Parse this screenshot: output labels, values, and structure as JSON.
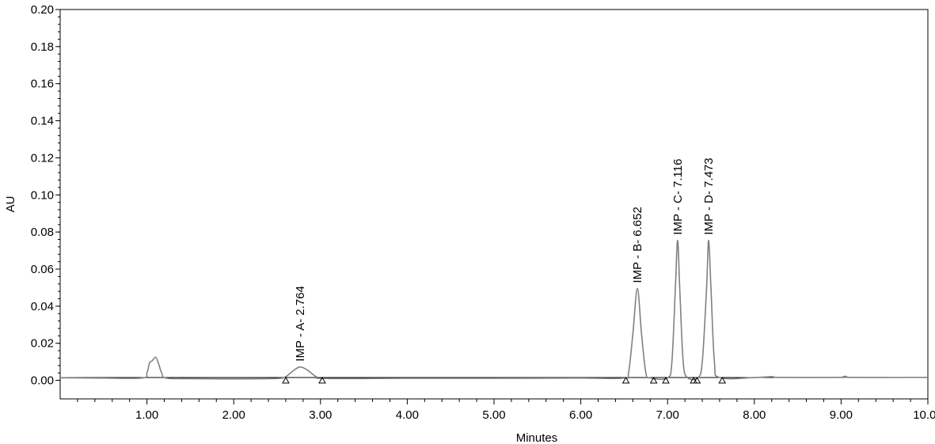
{
  "chart_data": {
    "type": "line",
    "title": "",
    "xlabel": "Minutes",
    "ylabel": "AU",
    "xlim": [
      0.0,
      10.0
    ],
    "ylim": [
      -0.01,
      0.2
    ],
    "x_ticks": [
      1.0,
      2.0,
      3.0,
      4.0,
      5.0,
      6.0,
      7.0,
      8.0,
      9.0,
      10.0
    ],
    "x_tick_labels": [
      "1.00",
      "2.00",
      "3.00",
      "4.00",
      "5.00",
      "6.00",
      "7.00",
      "8.00",
      "9.00",
      "10.00"
    ],
    "y_ticks": [
      0.0,
      0.02,
      0.04,
      0.06,
      0.08,
      0.1,
      0.12,
      0.14,
      0.16,
      0.18,
      0.2
    ],
    "y_tick_labels": [
      "0.00",
      "0.02",
      "0.04",
      "0.06",
      "0.08",
      "0.10",
      "0.12",
      "0.14",
      "0.16",
      "0.18",
      "0.20"
    ],
    "grid": false,
    "baseline": 0.0015,
    "series": [
      {
        "color": "#808080",
        "points": [
          [
            0.0,
            0.0014
          ],
          [
            0.5,
            0.0012
          ],
          [
            0.95,
            0.0013
          ],
          [
            1.0,
            0.004
          ],
          [
            1.03,
            0.0095
          ],
          [
            1.06,
            0.0105
          ],
          [
            1.1,
            0.0125
          ],
          [
            1.13,
            0.0095
          ],
          [
            1.17,
            0.004
          ],
          [
            1.22,
            0.0012
          ],
          [
            1.5,
            0.0009
          ],
          [
            2.0,
            0.0008
          ],
          [
            2.5,
            0.001
          ],
          [
            2.6,
            0.002
          ],
          [
            2.68,
            0.005
          ],
          [
            2.764,
            0.0072
          ],
          [
            2.85,
            0.0055
          ],
          [
            2.95,
            0.002
          ],
          [
            3.05,
            0.001
          ],
          [
            4.0,
            0.0011
          ],
          [
            5.0,
            0.0011
          ],
          [
            6.0,
            0.0012
          ],
          [
            6.5,
            0.0012
          ],
          [
            6.55,
            0.004
          ],
          [
            6.6,
            0.025
          ],
          [
            6.652,
            0.0495
          ],
          [
            6.7,
            0.025
          ],
          [
            6.75,
            0.004
          ],
          [
            6.8,
            0.0013
          ],
          [
            7.0,
            0.0013
          ],
          [
            7.05,
            0.01
          ],
          [
            7.09,
            0.05
          ],
          [
            7.116,
            0.0755
          ],
          [
            7.14,
            0.05
          ],
          [
            7.18,
            0.01
          ],
          [
            7.23,
            0.0015
          ],
          [
            7.35,
            0.0014
          ],
          [
            7.4,
            0.01
          ],
          [
            7.45,
            0.05
          ],
          [
            7.473,
            0.0755
          ],
          [
            7.5,
            0.05
          ],
          [
            7.54,
            0.01
          ],
          [
            7.6,
            0.0015
          ],
          [
            8.0,
            0.0015
          ],
          [
            8.2,
            0.002
          ],
          [
            8.3,
            0.0016
          ],
          [
            9.0,
            0.0016
          ],
          [
            9.05,
            0.0022
          ],
          [
            9.1,
            0.0016
          ],
          [
            10.0,
            0.0016
          ]
        ]
      }
    ],
    "peaks": [
      {
        "label": "IMP - A- 2.764",
        "x": 2.764,
        "y": 0.0072
      },
      {
        "label": "IMP - B- 6.652",
        "x": 6.652,
        "y": 0.0495
      },
      {
        "label": "IMP - C- 7.116",
        "x": 7.116,
        "y": 0.0755
      },
      {
        "label": "IMP - D- 7.473",
        "x": 7.473,
        "y": 0.0755
      }
    ],
    "integration_markers": [
      2.6,
      3.02,
      6.52,
      6.84,
      6.98,
      7.3,
      7.34,
      7.63
    ]
  }
}
